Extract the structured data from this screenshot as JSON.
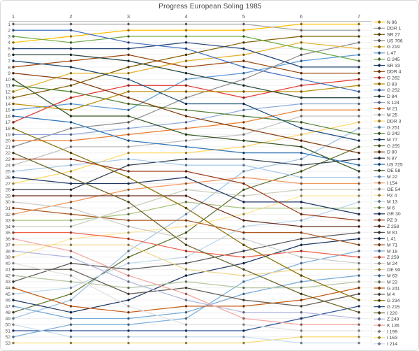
{
  "title": "Progress European Soling 1985",
  "chart_data": {
    "type": "line",
    "subtype": "bump-ranking",
    "title": "Progress European Soling 1985",
    "x": [
      1,
      2,
      3,
      4,
      5,
      6,
      7
    ],
    "x_axis": {
      "position": "top"
    },
    "y_axis": {
      "min": 1,
      "max": 53,
      "inverted": true,
      "grid": true
    },
    "legend_position": "right",
    "series": [
      {
        "label": "N 96",
        "color": "#FFC000"
      },
      {
        "label": "DDR 1",
        "color": "#A6A6A6"
      },
      {
        "label": "SR 27",
        "color": "#7F6000"
      },
      {
        "label": "US 706",
        "color": "#8C8C8C"
      },
      {
        "label": "G 219",
        "color": "#E3B229"
      },
      {
        "label": "L 47",
        "color": "#5B9BD5"
      },
      {
        "label": "G 245",
        "color": "#70AD47"
      },
      {
        "label": "SR 33",
        "color": "#264478"
      },
      {
        "label": "DDR 4",
        "color": "#9E480E"
      },
      {
        "label": "G 262",
        "color": "#E03A2F"
      },
      {
        "label": "D 83",
        "color": "#BF8F00"
      },
      {
        "label": "G 252",
        "color": "#4472C4"
      },
      {
        "label": "D 84",
        "color": "#24433C"
      },
      {
        "label": "S 124",
        "color": "#8FAADC"
      },
      {
        "label": "M 21",
        "color": "#ED7D31"
      },
      {
        "label": "M 25",
        "color": "#BFBFBF"
      },
      {
        "label": "DDR 3",
        "color": "#FFD966"
      },
      {
        "label": "G 251",
        "color": "#9DC3E6"
      },
      {
        "label": "G 242",
        "color": "#548235"
      },
      {
        "label": "M 77",
        "color": "#1F4E79"
      },
      {
        "label": "G 255",
        "color": "#5F7530"
      },
      {
        "label": "D 80",
        "color": "#843C0C"
      },
      {
        "label": "N 87",
        "color": "#333F50"
      },
      {
        "label": "US 725",
        "color": "#2E75B6"
      },
      {
        "label": "OE 58",
        "color": "#375623"
      },
      {
        "label": "M 22",
        "color": "#A6CAEC"
      },
      {
        "label": "I 154",
        "color": "#F1975A"
      },
      {
        "label": "OE 54",
        "color": "#C9CFBD"
      },
      {
        "label": "PZ 4",
        "color": "#FFE699"
      },
      {
        "label": "M 13",
        "color": "#BDD7EE"
      },
      {
        "label": "M 6",
        "color": "#A9C47F"
      },
      {
        "label": "GR 30",
        "color": "#203864"
      },
      {
        "label": "PZ 3",
        "color": "#9C3B16"
      },
      {
        "label": "Z 258",
        "color": "#6E2F1F"
      },
      {
        "label": "M 81",
        "color": "#595959"
      },
      {
        "label": "L 41",
        "color": "#1F3864"
      },
      {
        "label": "M 71",
        "color": "#AE5A21"
      },
      {
        "label": "M 18",
        "color": "#7EB0DC"
      },
      {
        "label": "Z 259",
        "color": "#F0614A"
      },
      {
        "label": "M 24",
        "color": "#CFCDC9"
      },
      {
        "label": "OE 90",
        "color": "#EFD88F"
      },
      {
        "label": "M 63",
        "color": "#74A9D8"
      },
      {
        "label": "M 23",
        "color": "#B5C7A3"
      },
      {
        "label": "G 241",
        "color": "#C55A11"
      },
      {
        "label": "M 4",
        "color": "#665E54"
      },
      {
        "label": "G 234",
        "color": "#8A7000"
      },
      {
        "label": "G 215",
        "color": "#2F5597"
      },
      {
        "label": "I 220",
        "color": "#6B6426"
      },
      {
        "label": "Z 249",
        "color": "#B1B7DE"
      },
      {
        "label": "K 136",
        "color": "#F4A7A0"
      },
      {
        "label": "I 199",
        "color": "#E2E2E2"
      },
      {
        "label": "I 163",
        "color": "#F7DD71"
      },
      {
        "label": "I 214",
        "color": "#C9DDF0"
      }
    ],
    "race_orders": [
      [
        2,
        12,
        7,
        1,
        8,
        13,
        20,
        9,
        22,
        25,
        19,
        5,
        3,
        11,
        6,
        24,
        10,
        46,
        14,
        15,
        4,
        48,
        33,
        16,
        26,
        32,
        17,
        23,
        34,
        40,
        37,
        27,
        31,
        28,
        39,
        50,
        41,
        49,
        29,
        51,
        45,
        43,
        35,
        44,
        30,
        36,
        42,
        21,
        18,
        53,
        47,
        38,
        52
      ],
      [
        2,
        12,
        1,
        7,
        8,
        13,
        9,
        20,
        5,
        22,
        3,
        19,
        10,
        6,
        11,
        25,
        24,
        4,
        14,
        15,
        16,
        46,
        33,
        26,
        17,
        48,
        32,
        23,
        34,
        27,
        40,
        37,
        31,
        28,
        39,
        29,
        41,
        50,
        49,
        35,
        45,
        51,
        43,
        30,
        21,
        18,
        44,
        36,
        42,
        38,
        47,
        53,
        52
      ],
      [
        2,
        1,
        7,
        12,
        8,
        9,
        13,
        3,
        5,
        20,
        10,
        11,
        22,
        19,
        6,
        25,
        4,
        14,
        15,
        24,
        16,
        17,
        26,
        23,
        33,
        46,
        32,
        27,
        34,
        48,
        28,
        31,
        37,
        40,
        29,
        39,
        41,
        18,
        21,
        30,
        35,
        50,
        49,
        43,
        45,
        36,
        51,
        44,
        42,
        38,
        47,
        53,
        52
      ],
      [
        2,
        1,
        7,
        8,
        12,
        3,
        5,
        9,
        13,
        6,
        10,
        11,
        4,
        20,
        19,
        22,
        14,
        15,
        25,
        16,
        24,
        17,
        23,
        26,
        33,
        32,
        27,
        28,
        34,
        31,
        46,
        18,
        37,
        29,
        21,
        40,
        48,
        39,
        30,
        35,
        41,
        36,
        43,
        45,
        50,
        49,
        44,
        42,
        38,
        51,
        47,
        53,
        52
      ],
      [
        2,
        1,
        7,
        3,
        8,
        5,
        9,
        12,
        6,
        4,
        13,
        11,
        10,
        20,
        14,
        19,
        15,
        22,
        16,
        25,
        17,
        24,
        23,
        26,
        18,
        27,
        33,
        21,
        28,
        32,
        31,
        29,
        34,
        30,
        37,
        40,
        46,
        35,
        39,
        36,
        48,
        41,
        38,
        43,
        42,
        45,
        44,
        49,
        50,
        51,
        47,
        53,
        52
      ],
      [
        1,
        2,
        3,
        5,
        7,
        4,
        6,
        8,
        9,
        12,
        10,
        11,
        13,
        14,
        15,
        16,
        19,
        20,
        17,
        22,
        25,
        24,
        18,
        23,
        21,
        26,
        27,
        28,
        29,
        32,
        31,
        33,
        30,
        34,
        37,
        35,
        36,
        39,
        40,
        38,
        41,
        46,
        42,
        43,
        48,
        44,
        45,
        49,
        47,
        50,
        51,
        52,
        53
      ],
      [
        1,
        2,
        3,
        4,
        5,
        6,
        7,
        8,
        9,
        10,
        11,
        12,
        13,
        14,
        15,
        16,
        17,
        18,
        19,
        20,
        21,
        22,
        23,
        24,
        25,
        26,
        27,
        28,
        29,
        30,
        31,
        32,
        33,
        34,
        35,
        36,
        37,
        38,
        39,
        40,
        41,
        42,
        43,
        44,
        45,
        46,
        47,
        48,
        49,
        50,
        51,
        52,
        53
      ]
    ]
  }
}
